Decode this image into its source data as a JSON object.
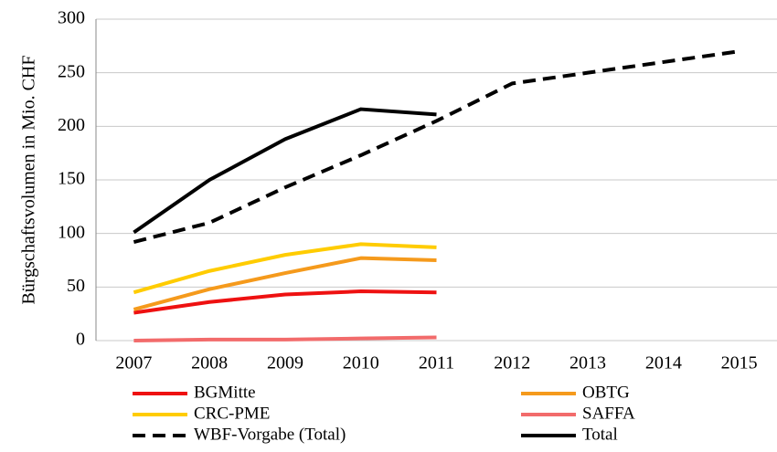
{
  "chart_data": {
    "type": "line",
    "y_label": "Bürgschaftsvolumen in Mio. CHF",
    "categories": [
      "2007",
      "2008",
      "2009",
      "2010",
      "2011",
      "2012",
      "2013",
      "2014",
      "2015"
    ],
    "series": [
      {
        "name": "BGMitte",
        "color": "#ee1111",
        "dash": false,
        "values": [
          26,
          36,
          43,
          46,
          45,
          null,
          null,
          null,
          null
        ]
      },
      {
        "name": "OBTG",
        "color": "#f59a1c",
        "dash": false,
        "values": [
          29,
          48,
          63,
          77,
          75,
          null,
          null,
          null,
          null
        ]
      },
      {
        "name": "CRC-PME",
        "color": "#ffcc00",
        "dash": false,
        "values": [
          45,
          65,
          80,
          90,
          87,
          null,
          null,
          null,
          null
        ]
      },
      {
        "name": "SAFFA",
        "color": "#f26b6b",
        "dash": false,
        "values": [
          0,
          1,
          1,
          2,
          3,
          null,
          null,
          null,
          null
        ]
      },
      {
        "name": "WBF-Vorgabe (Total)",
        "color": "#000000",
        "dash": true,
        "values": [
          92,
          110,
          143,
          173,
          205,
          240,
          250,
          260,
          270
        ]
      },
      {
        "name": "Total",
        "color": "#000000",
        "dash": false,
        "values": [
          101,
          150,
          188,
          216,
          211,
          null,
          null,
          null,
          null
        ]
      }
    ],
    "ylim": [
      0,
      300
    ],
    "yticks": [
      0,
      50,
      100,
      150,
      200,
      250,
      300
    ],
    "grid": true
  }
}
